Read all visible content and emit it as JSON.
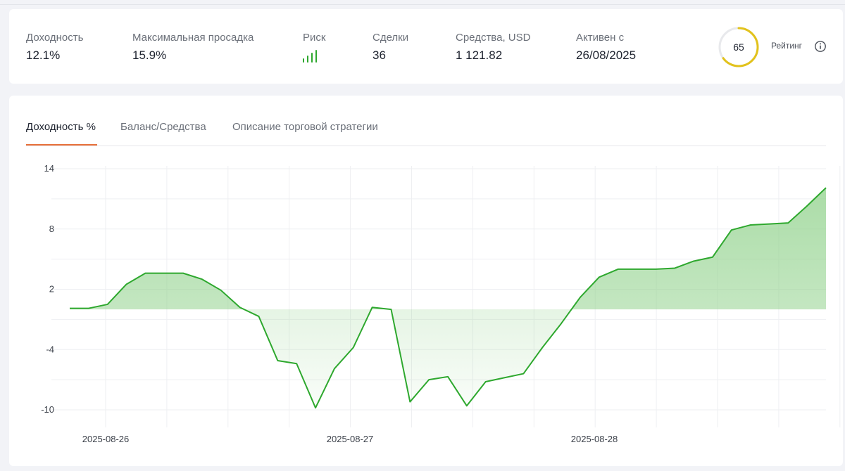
{
  "stats": [
    {
      "label": "Доходность",
      "value": "12.1%"
    },
    {
      "label": "Максимальная просадка",
      "value": "15.9%"
    },
    {
      "label": "Сделки",
      "value": "36"
    },
    {
      "label": "Средства, USD",
      "value": "1 121.82"
    },
    {
      "label": "Активен с",
      "value": "26/08/2025"
    }
  ],
  "risk": {
    "label": "Риск",
    "level": 4,
    "max_level": 4,
    "color": "#2ea82e"
  },
  "rating": {
    "value": "65",
    "label": "Рейтинг",
    "fraction": 0.65,
    "color": "#e2c21b",
    "icon": "info-icon"
  },
  "tabs": [
    {
      "label": "Доходность %",
      "active": true
    },
    {
      "label": "Баланс/Средства",
      "active": false
    },
    {
      "label": "Описание торговой стратегии",
      "active": false
    }
  ],
  "colors": {
    "accent": "#e8703a",
    "line": "#2ea82e",
    "fill": "#8fd18a"
  },
  "chart_data": {
    "type": "area",
    "title": "",
    "xlabel": "",
    "ylabel": "",
    "ylim": [
      -10,
      14
    ],
    "yticks": [
      14,
      8,
      2,
      -4,
      -10
    ],
    "xticks": [
      "2025-08-26",
      "2025-08-27",
      "2025-08-28"
    ],
    "grid": true,
    "baseline": 0,
    "x": [
      0,
      0.025,
      0.05,
      0.075,
      0.1,
      0.125,
      0.15,
      0.175,
      0.2,
      0.225,
      0.25,
      0.275,
      0.3,
      0.325,
      0.35,
      0.375,
      0.4,
      0.425,
      0.45,
      0.475,
      0.5,
      0.525,
      0.55,
      0.575,
      0.6,
      0.625,
      0.65,
      0.675,
      0.7,
      0.725,
      0.75,
      0.775,
      0.8,
      0.825,
      0.85,
      0.875,
      0.9,
      0.925,
      0.95,
      0.975,
      1.0
    ],
    "series": [
      {
        "values": [
          0.1,
          0.1,
          0.5,
          2.5,
          3.6,
          3.6,
          3.6,
          3.0,
          1.9,
          0.2,
          -0.7,
          -5.1,
          -5.4,
          -9.8,
          -5.9,
          -3.8,
          0.2,
          0.0,
          -9.2,
          -7.0,
          -6.7,
          -9.6,
          -7.2,
          -6.8,
          -6.4,
          -3.8,
          -1.4,
          1.2,
          3.2,
          4.0,
          4.0,
          4.0,
          4.1,
          4.8,
          5.2,
          7.9,
          8.4,
          8.5,
          8.6,
          10.3,
          12.1
        ]
      }
    ]
  }
}
